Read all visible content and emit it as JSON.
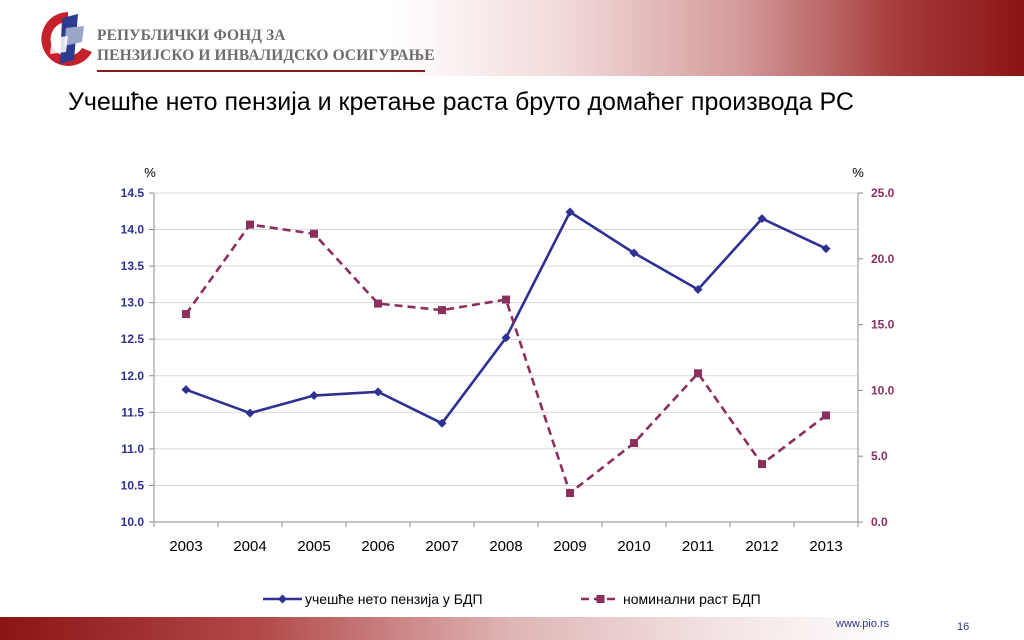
{
  "header": {
    "org_line1": "РЕПУБЛИЧКИ ФОНД ЗА",
    "org_line2": "ПЕНЗИЈСКО И ИНВАЛИДСКО ОСИГУРАЊЕ"
  },
  "slide": {
    "title": "Учешће нето пензија и кретање раста бруто домаћег производа РС"
  },
  "footer": {
    "url": "www.pio.rs",
    "page": "16"
  },
  "colors": {
    "series1": "#2e3192",
    "series2": "#8b2f5e",
    "brand_red": "#8b1414"
  },
  "chart_data": {
    "type": "line",
    "categories": [
      "2003",
      "2004",
      "2005",
      "2006",
      "2007",
      "2008",
      "2009",
      "2010",
      "2011",
      "2012",
      "2013"
    ],
    "y_left": {
      "label": "%",
      "ylim": [
        10.0,
        14.5
      ],
      "ticks": [
        "10.0",
        "10.5",
        "11.0",
        "11.5",
        "12.0",
        "12.5",
        "13.0",
        "13.5",
        "14.0",
        "14.5"
      ]
    },
    "y_right": {
      "label": "%",
      "ylim": [
        0.0,
        25.0
      ],
      "ticks": [
        "0.0",
        "5.0",
        "10.0",
        "15.0",
        "20.0",
        "25.0"
      ]
    },
    "series": [
      {
        "name": "учешће нето пензија у БДП",
        "axis": "left",
        "style": "solid",
        "marker": "diamond",
        "values": [
          11.81,
          11.49,
          11.73,
          11.78,
          11.35,
          12.52,
          14.24,
          13.68,
          13.18,
          14.15,
          13.74
        ]
      },
      {
        "name": "номинални раст БДП",
        "axis": "right",
        "style": "dashed",
        "marker": "square",
        "values": [
          15.8,
          22.6,
          21.9,
          16.6,
          16.1,
          16.9,
          2.2,
          6.0,
          11.3,
          4.4,
          8.1
        ]
      }
    ],
    "grid": true,
    "legend_position": "bottom"
  }
}
